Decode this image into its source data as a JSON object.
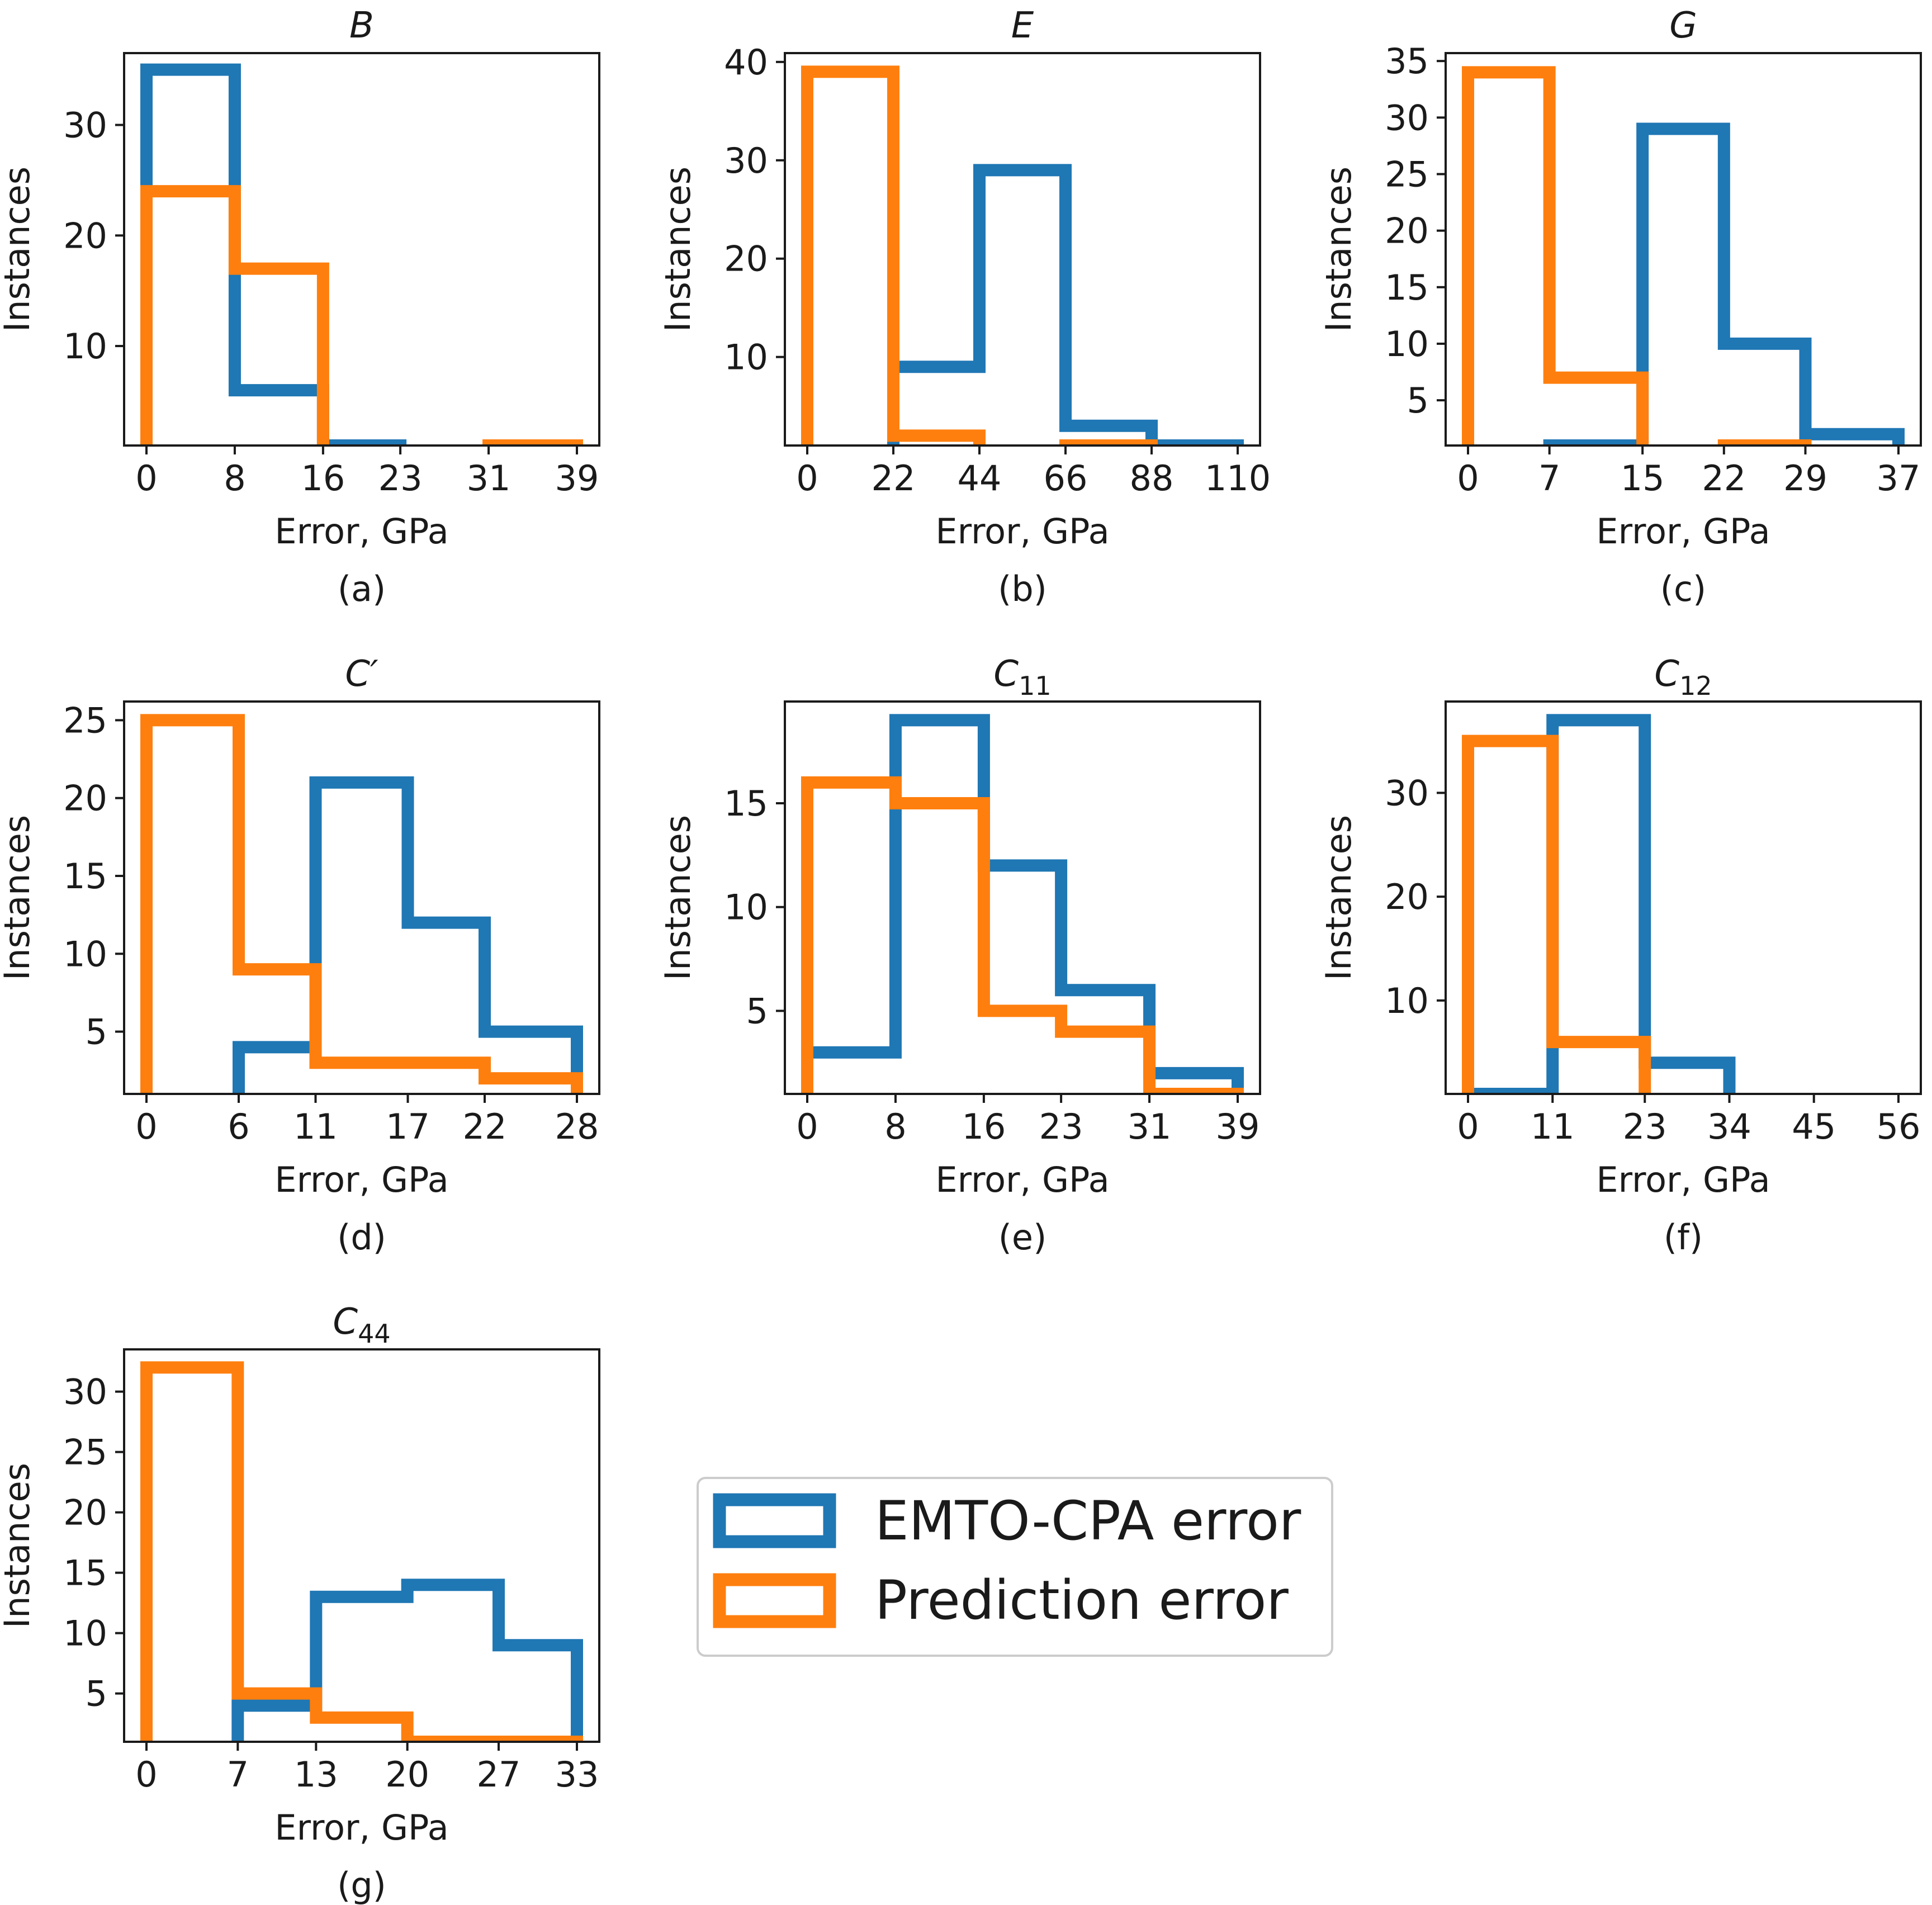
{
  "figure": {
    "x_label": "Error, GPa",
    "y_label": "Instances"
  },
  "legend": {
    "items": [
      {
        "label": "EMTO-CPA error",
        "color": "#1f77b4"
      },
      {
        "label": "Prediction error",
        "color": "#ff7f0e"
      }
    ]
  },
  "colors": {
    "emto": "#1f77b4",
    "prediction": "#ff7f0e",
    "axes": "#1a1a1a"
  },
  "chart_data": [
    {
      "type": "bar",
      "histtype": "step",
      "title": "B",
      "title_sub": "",
      "caption": "(a)",
      "xlabel": "Error, GPa",
      "ylabel": "Instances",
      "bin_edges": [
        0,
        8,
        16,
        23,
        31,
        39
      ],
      "xticks": [
        "0",
        "8",
        "16",
        "23",
        "31",
        "39"
      ],
      "yticks": [
        10,
        20,
        30
      ],
      "ylim": [
        1,
        36.5
      ],
      "series": [
        {
          "name": "EMTO-CPA error",
          "values": [
            35,
            6,
            1,
            0,
            0
          ]
        },
        {
          "name": "Prediction error",
          "values": [
            24,
            17,
            0,
            0,
            1
          ]
        }
      ]
    },
    {
      "type": "bar",
      "histtype": "step",
      "title": "E",
      "title_sub": "",
      "caption": "(b)",
      "xlabel": "Error, GPa",
      "ylabel": "Instances",
      "bin_edges": [
        0,
        22,
        44,
        66,
        88,
        110
      ],
      "xticks": [
        "0",
        "22",
        "44",
        "66",
        "88",
        "110"
      ],
      "yticks": [
        10,
        20,
        30,
        40
      ],
      "ylim": [
        1,
        40.9
      ],
      "series": [
        {
          "name": "EMTO-CPA error",
          "values": [
            0,
            9,
            29,
            3,
            1
          ]
        },
        {
          "name": "Prediction error",
          "values": [
            39,
            2,
            0,
            1,
            0
          ]
        }
      ]
    },
    {
      "type": "bar",
      "histtype": "step",
      "title": "G",
      "title_sub": "",
      "caption": "(c)",
      "xlabel": "Error, GPa",
      "ylabel": "Instances",
      "bin_edges": [
        0,
        7,
        15,
        22,
        29,
        37
      ],
      "xticks": [
        "0",
        "7",
        "15",
        "22",
        "29",
        "37"
      ],
      "yticks": [
        5,
        10,
        15,
        20,
        25,
        30,
        35
      ],
      "ylim": [
        1,
        35.7
      ],
      "series": [
        {
          "name": "EMTO-CPA error",
          "values": [
            0,
            1,
            29,
            10,
            2
          ]
        },
        {
          "name": "Prediction error",
          "values": [
            34,
            7,
            0,
            1,
            0
          ]
        }
      ]
    },
    {
      "type": "bar",
      "histtype": "step",
      "title": "C′",
      "title_sub": "",
      "caption": "(d)",
      "xlabel": "Error, GPa",
      "ylabel": "Instances",
      "bin_edges": [
        0,
        6,
        11,
        17,
        22,
        28
      ],
      "xticks": [
        "0",
        "6",
        "11",
        "17",
        "22",
        "28"
      ],
      "yticks": [
        5,
        10,
        15,
        20,
        25
      ],
      "ylim": [
        1,
        26.2
      ],
      "series": [
        {
          "name": "EMTO-CPA error",
          "values": [
            0,
            4,
            21,
            12,
            5
          ]
        },
        {
          "name": "Prediction error",
          "values": [
            25,
            9,
            3,
            3,
            2
          ]
        }
      ]
    },
    {
      "type": "bar",
      "histtype": "step",
      "title": "C",
      "title_sub": "11",
      "caption": "(e)",
      "xlabel": "Error, GPa",
      "ylabel": "Instances",
      "bin_edges": [
        0,
        8,
        16,
        23,
        31,
        39
      ],
      "xticks": [
        "0",
        "8",
        "16",
        "23",
        "31",
        "39"
      ],
      "yticks": [
        5,
        10,
        15
      ],
      "ylim": [
        1,
        19.9
      ],
      "series": [
        {
          "name": "EMTO-CPA error",
          "values": [
            3,
            19,
            12,
            6,
            2
          ]
        },
        {
          "name": "Prediction error",
          "values": [
            16,
            15,
            5,
            4,
            1
          ]
        }
      ]
    },
    {
      "type": "bar",
      "histtype": "step",
      "title": "C",
      "title_sub": "12",
      "caption": "(f)",
      "xlabel": "Error, GPa",
      "ylabel": "Instances",
      "bin_edges": [
        0,
        11,
        23,
        34,
        45,
        56
      ],
      "xticks": [
        "0",
        "11",
        "23",
        "34",
        "45",
        "56"
      ],
      "yticks": [
        10,
        20,
        30
      ],
      "ylim": [
        1,
        38.8
      ],
      "series": [
        {
          "name": "EMTO-CPA error",
          "values": [
            1,
            37,
            4,
            0,
            0
          ]
        },
        {
          "name": "Prediction error",
          "values": [
            35,
            6,
            0,
            0,
            0
          ]
        }
      ]
    },
    {
      "type": "bar",
      "histtype": "step",
      "title": "C",
      "title_sub": "44",
      "caption": "(g)",
      "xlabel": "Error, GPa",
      "ylabel": "Instances",
      "bin_edges": [
        0,
        7,
        13,
        20,
        27,
        33
      ],
      "xticks": [
        "0",
        "7",
        "13",
        "20",
        "27",
        "33"
      ],
      "yticks": [
        5,
        10,
        15,
        20,
        25,
        30
      ],
      "ylim": [
        1,
        33.5
      ],
      "series": [
        {
          "name": "EMTO-CPA error",
          "values": [
            0,
            4,
            13,
            14,
            9
          ]
        },
        {
          "name": "Prediction error",
          "values": [
            32,
            5,
            3,
            1,
            1
          ]
        }
      ]
    }
  ]
}
